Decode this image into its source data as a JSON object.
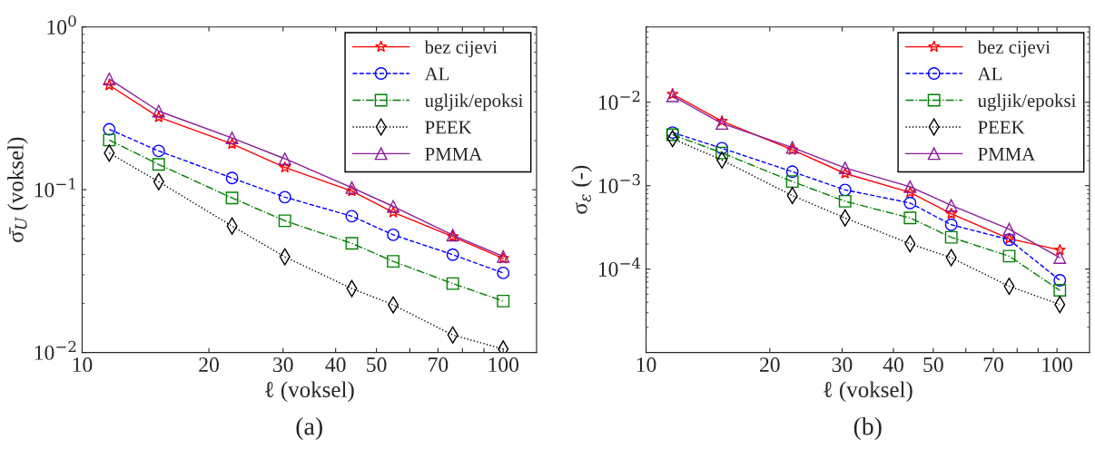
{
  "chart_data": [
    {
      "type": "line",
      "ylabel": "σ̄$_{U}$ (voksel)",
      "xlabel": "ℓ (voksel)",
      "annotations": [
        "(a)"
      ],
      "log": "xy",
      "grid": false,
      "legend": "top right",
      "xlim": [
        10,
        120
      ],
      "xticks": [
        10,
        20,
        30,
        40,
        50,
        {
          "value": 60,
          "label": null
        },
        70,
        {
          "value": 80,
          "label": null
        },
        {
          "value": 90,
          "label": null
        },
        100
      ],
      "ylim": [
        0.01,
        1
      ],
      "yticks": [
        {
          "value": 0.01,
          "label": "10$^{−2}$"
        },
        {
          "value": 0.1,
          "label": "10$^{−1}$"
        },
        {
          "value": 1,
          "label": "10$^{0}$"
        }
      ],
      "x": [
        11.6,
        15.2,
        22.7,
        30.3,
        43.7,
        54.8,
        75.9,
        100
      ],
      "series": [
        {
          "name": "bez cijevi",
          "color": "#ff0000",
          "marker": "star",
          "line_style": "solid",
          "values": [
            0.438,
            0.279,
            0.191,
            0.137,
            0.098,
            0.0726,
            0.0515,
            0.0378
          ]
        },
        {
          "name": "AL",
          "color": "#0000ff",
          "marker": "circle",
          "line_style": "dashed",
          "values": [
            0.235,
            0.173,
            0.118,
            0.09,
            0.0687,
            0.0528,
            0.0399,
            0.0308
          ]
        },
        {
          "name": "ugljik/epoksi",
          "color": "#008000",
          "marker": "square",
          "line_style": "dashdot",
          "values": [
            0.202,
            0.143,
            0.089,
            0.0644,
            0.0468,
            0.0363,
            0.0265,
            0.0207
          ]
        },
        {
          "name": "PEEK",
          "color": "#000000",
          "marker": "diamond",
          "line_style": "dotted",
          "values": [
            0.168,
            0.112,
            0.0598,
            0.0387,
            0.0247,
            0.0196,
            0.0128,
            0.0105
          ]
        },
        {
          "name": "PMMA",
          "color": "#8b1a9b",
          "marker": "triangle",
          "line_style": "solid",
          "values": [
            0.479,
            0.304,
            0.208,
            0.155,
            0.103,
            0.079,
            0.0526,
            0.0389
          ]
        }
      ]
    },
    {
      "type": "line",
      "ylabel": "σ$_{ε}$ (-)",
      "xlabel": "ℓ (voksel)",
      "annotations": [
        "(b)"
      ],
      "log": "xy",
      "grid": false,
      "legend": "top right",
      "xlim": [
        10,
        120
      ],
      "xticks": [
        10,
        20,
        30,
        40,
        50,
        {
          "value": 60,
          "label": null
        },
        70,
        {
          "value": 80,
          "label": null
        },
        {
          "value": 90,
          "label": null
        },
        100
      ],
      "ylim": [
        1e-05,
        0.08
      ],
      "yticks": [
        {
          "value": 0.0001,
          "label": "10$^{−4}$"
        },
        {
          "value": 0.001,
          "label": "10$^{−3}$"
        },
        {
          "value": 0.01,
          "label": "10$^{−2}$"
        }
      ],
      "x": [
        11.6,
        15.3,
        22.7,
        30.5,
        43.9,
        55.3,
        76.5,
        101.6
      ],
      "series": [
        {
          "name": "bez cijevi",
          "color": "#ff0000",
          "marker": "star",
          "line_style": "solid",
          "values": [
            0.0125,
            0.00593,
            0.00269,
            0.0014,
            0.00083,
            0.00046,
            0.000231,
            0.000169
          ]
        },
        {
          "name": "AL",
          "color": "#0000ff",
          "marker": "circle",
          "line_style": "dashed",
          "values": [
            0.00433,
            0.00281,
            0.00147,
            0.00089,
            0.00062,
            0.00034,
            0.000225,
            7.34e-05
          ]
        },
        {
          "name": "ugljik/epoksi",
          "color": "#008000",
          "marker": "square",
          "line_style": "dashdot",
          "values": [
            0.00409,
            0.00247,
            0.00112,
            0.00065,
            0.00041,
            0.00024,
            0.000143,
            5.56e-05
          ]
        },
        {
          "name": "PEEK",
          "color": "#000000",
          "marker": "diamond",
          "line_style": "dotted",
          "values": [
            0.00366,
            0.00203,
            0.00076,
            0.00041,
            0.000201,
            0.000137,
            6.22e-05,
            3.76e-05
          ]
        },
        {
          "name": "PMMA",
          "color": "#8b1a9b",
          "marker": "triangle",
          "line_style": "solid",
          "values": [
            0.0119,
            0.00556,
            0.00287,
            0.00163,
            0.00097,
            0.00058,
            0.000301,
            0.000137
          ]
        }
      ]
    }
  ]
}
